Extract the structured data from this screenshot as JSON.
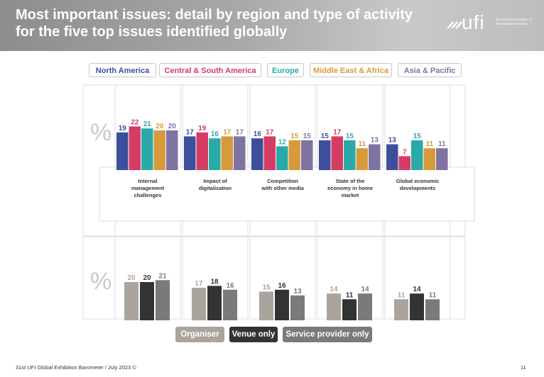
{
  "slide": {
    "title": "Most important issues: detail by region and type of activity for the five top issues identified globally",
    "logo_word": "ufi",
    "logo_tagline": "The Global Association of the Exhibition Industry",
    "footer": "31st UFI Global Exhibition Barometer / July 2023 ©",
    "page_number": "11"
  },
  "colors": {
    "north_america": "#3d4f9b",
    "central_south_america": "#d63c63",
    "europe": "#2aa9a9",
    "middle_east_africa": "#d79a3a",
    "asia_pacific": "#7f73a2",
    "organiser": "#aaa49d",
    "venue_only": "#333333",
    "service_provider_only": "#7a7a7a"
  },
  "chart_data": [
    {
      "type": "bar",
      "unit_label": "%",
      "categories": [
        "Internal management challenges",
        "Impact of digitalisation",
        "Competition with other media",
        "State of the economy in home market",
        "Global economic developments"
      ],
      "category_lines": [
        [
          "Internal",
          "management",
          "challenges"
        ],
        [
          "Impact of",
          "digitalisation"
        ],
        [
          "Competition",
          "with other media"
        ],
        [
          "State of the",
          "economy in home",
          "market"
        ],
        [
          "Global economic",
          "developments"
        ]
      ],
      "series": [
        {
          "name": "North America",
          "values": [
            19,
            17,
            16,
            15,
            13
          ]
        },
        {
          "name": "Central & South America",
          "values": [
            22,
            19,
            17,
            17,
            7
          ]
        },
        {
          "name": "Europe",
          "values": [
            21,
            16,
            12,
            15,
            15
          ]
        },
        {
          "name": "Middle East & Africa",
          "values": [
            20,
            17,
            15,
            11,
            11
          ]
        },
        {
          "name": "Asia & Pacific",
          "values": [
            20,
            17,
            15,
            13,
            11
          ]
        }
      ]
    },
    {
      "type": "bar",
      "unit_label": "%",
      "categories": [
        "Internal management challenges",
        "Impact of digitalisation",
        "Competition with other media",
        "State of the economy in home market",
        "Global economic developments"
      ],
      "series": [
        {
          "name": "Organiser",
          "values": [
            20,
            17,
            15,
            14,
            11
          ]
        },
        {
          "name": "Venue only",
          "values": [
            20,
            18,
            16,
            11,
            14
          ]
        },
        {
          "name": "Service provider only",
          "values": [
            21,
            16,
            13,
            14,
            11
          ]
        }
      ]
    }
  ]
}
